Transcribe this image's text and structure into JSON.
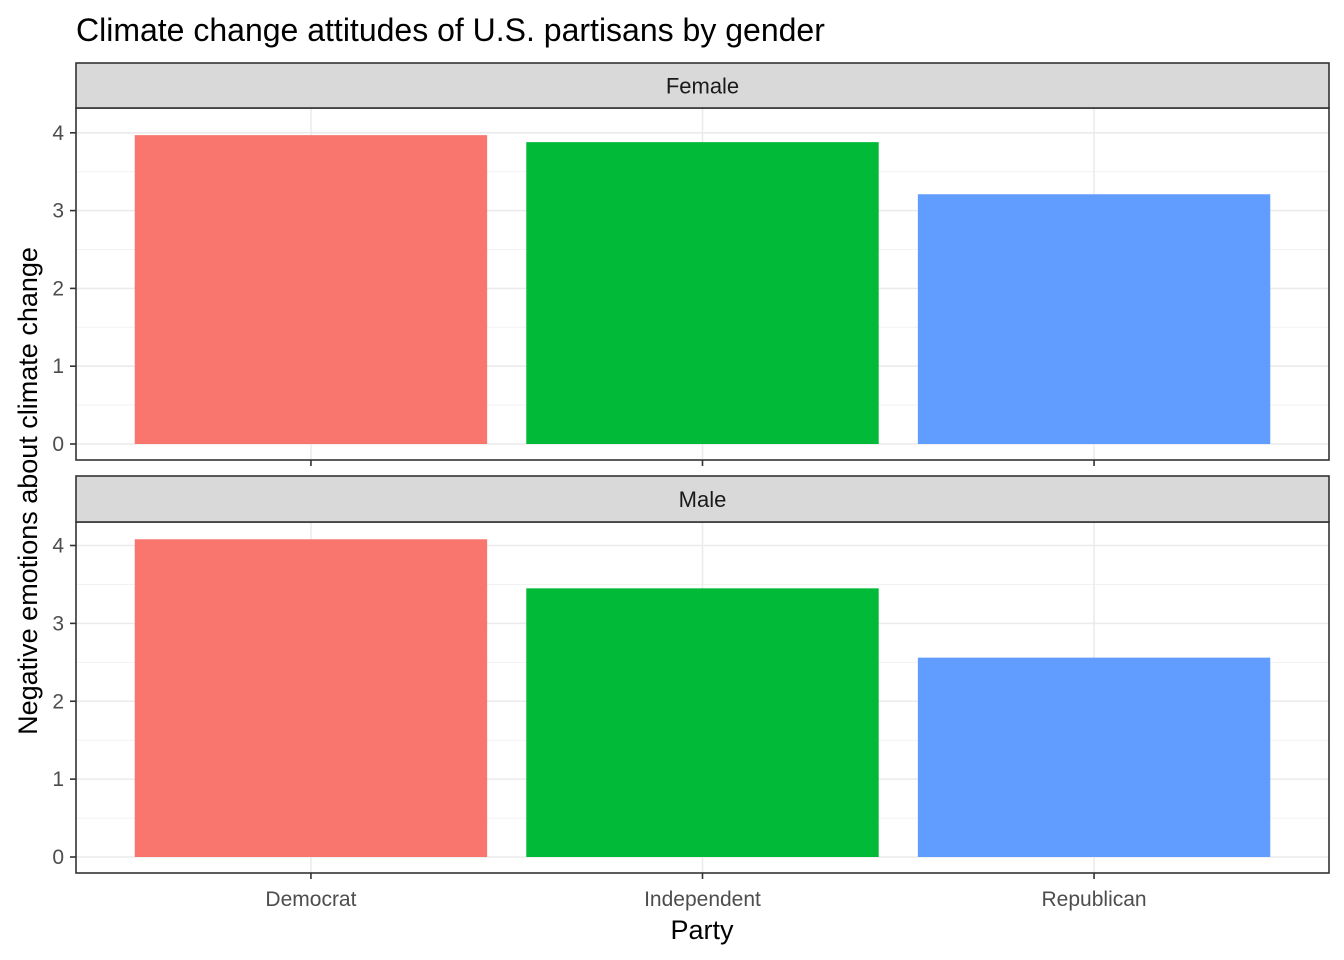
{
  "chart_data": {
    "type": "bar",
    "title": "Climate change attitudes of U.S. partisans by gender",
    "xlabel": "Party",
    "ylabel": "Negative emotions about climate change",
    "categories": [
      "Democrat",
      "Independent",
      "Republican"
    ],
    "colors": [
      "#F8766D",
      "#00BA38",
      "#619CFF"
    ],
    "ylim": [
      0,
      4
    ],
    "yticks": [
      "0",
      "1",
      "2",
      "3",
      "4"
    ],
    "facets": [
      {
        "label": "Female",
        "values": [
          3.97,
          3.88,
          3.21
        ]
      },
      {
        "label": "Male",
        "values": [
          4.08,
          3.45,
          2.56
        ]
      }
    ],
    "legend": "none",
    "grid": true
  }
}
